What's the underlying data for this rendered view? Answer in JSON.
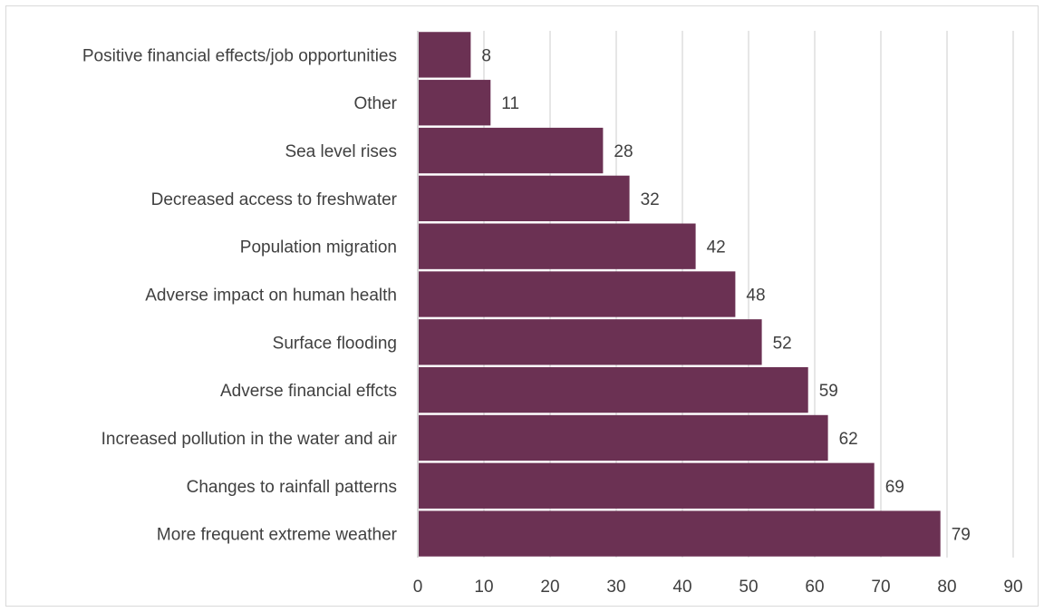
{
  "chart_data": {
    "type": "bar",
    "orientation": "horizontal",
    "title": "",
    "xlabel": "",
    "ylabel": "",
    "categories": [
      "Positive financial effects/job opportunities",
      "Other",
      "Sea level rises",
      "Decreased access to freshwater",
      "Population migration",
      "Adverse impact on human health",
      "Surface flooding",
      "Adverse financial effcts",
      "Increased pollution in the water and air",
      "Changes to rainfall patterns",
      "More frequent extreme weather"
    ],
    "values": [
      8,
      11,
      28,
      32,
      42,
      48,
      52,
      59,
      62,
      69,
      79
    ],
    "xlim": [
      0,
      90
    ],
    "xticks": [
      0,
      10,
      20,
      30,
      40,
      50,
      60,
      70,
      80,
      90
    ],
    "grid": "vertical",
    "data_labels": true,
    "bar_color": "#6b3153"
  }
}
